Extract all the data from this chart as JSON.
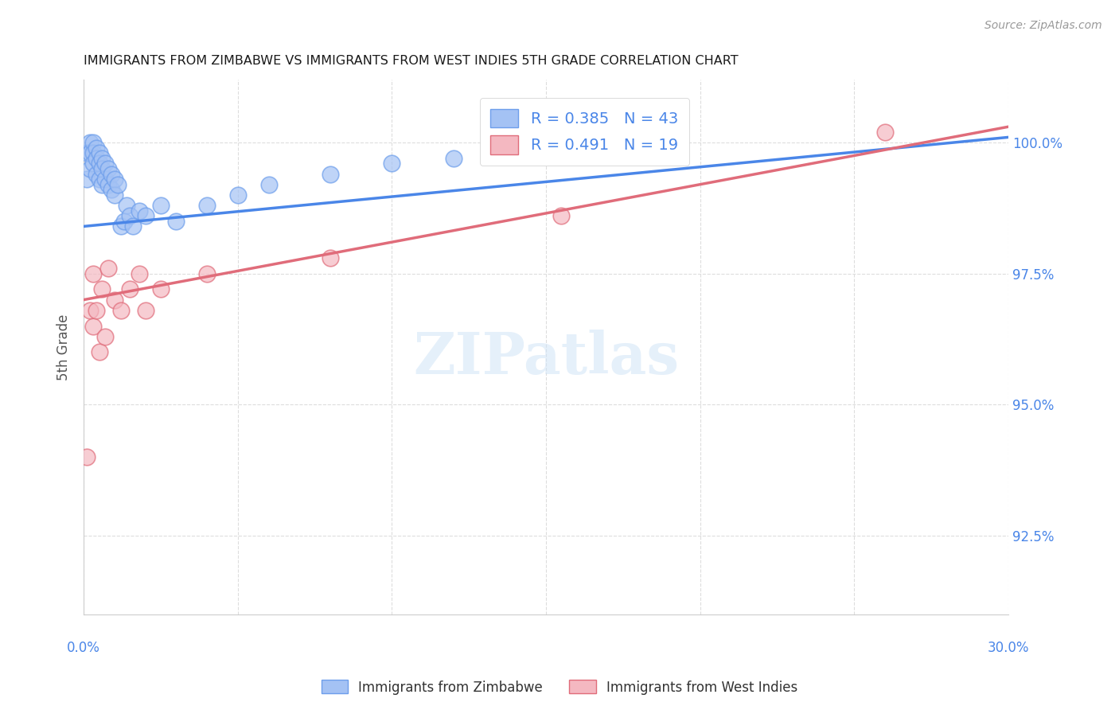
{
  "title": "IMMIGRANTS FROM ZIMBABWE VS IMMIGRANTS FROM WEST INDIES 5TH GRADE CORRELATION CHART",
  "source": "Source: ZipAtlas.com",
  "ylabel": "5th Grade",
  "ytick_values": [
    1.0,
    0.975,
    0.95,
    0.925
  ],
  "ytick_labels": [
    "100.0%",
    "97.5%",
    "95.0%",
    "92.5%"
  ],
  "xlim": [
    0.0,
    0.3
  ],
  "ylim": [
    0.91,
    1.012
  ],
  "legend_r1": "R = 0.385",
  "legend_n1": "N = 43",
  "legend_r2": "R = 0.491",
  "legend_n2": "N = 19",
  "blue_fill": "#a4c2f4",
  "blue_edge": "#6d9eeb",
  "pink_fill": "#f4b8c1",
  "pink_edge": "#e06c7a",
  "blue_line": "#4a86e8",
  "pink_line": "#e06c7a",
  "title_color": "#1a1a1a",
  "source_color": "#999999",
  "axis_label_color": "#555555",
  "ytick_color": "#4a86e8",
  "xtick_color": "#4a86e8",
  "grid_color": "#dddddd",
  "background_color": "#ffffff",
  "legend_label_color": "#4a86e8",
  "bottom_label_color": "#333333",
  "zimbabwe_x": [
    0.001,
    0.001,
    0.002,
    0.002,
    0.002,
    0.003,
    0.003,
    0.003,
    0.004,
    0.004,
    0.004,
    0.005,
    0.005,
    0.005,
    0.006,
    0.006,
    0.006,
    0.007,
    0.007,
    0.008,
    0.008,
    0.009,
    0.009,
    0.01,
    0.01,
    0.011,
    0.012,
    0.013,
    0.014,
    0.015,
    0.016,
    0.018,
    0.02,
    0.025,
    0.03,
    0.04,
    0.05,
    0.06,
    0.08,
    0.1,
    0.12,
    0.15,
    0.18
  ],
  "zimbabwe_y": [
    0.998,
    0.993,
    1.0,
    0.998,
    0.995,
    1.0,
    0.998,
    0.996,
    0.999,
    0.997,
    0.994,
    0.998,
    0.996,
    0.993,
    0.997,
    0.995,
    0.992,
    0.996,
    0.993,
    0.995,
    0.992,
    0.994,
    0.991,
    0.993,
    0.99,
    0.992,
    0.984,
    0.985,
    0.988,
    0.986,
    0.984,
    0.987,
    0.986,
    0.988,
    0.985,
    0.988,
    0.99,
    0.992,
    0.994,
    0.996,
    0.997,
    0.999,
    1.001
  ],
  "westindies_x": [
    0.001,
    0.002,
    0.003,
    0.003,
    0.004,
    0.005,
    0.006,
    0.007,
    0.008,
    0.01,
    0.012,
    0.015,
    0.018,
    0.02,
    0.025,
    0.04,
    0.08,
    0.155,
    0.26
  ],
  "westindies_y": [
    0.94,
    0.968,
    0.975,
    0.965,
    0.968,
    0.96,
    0.972,
    0.963,
    0.976,
    0.97,
    0.968,
    0.972,
    0.975,
    0.968,
    0.972,
    0.975,
    0.978,
    0.986,
    1.002
  ],
  "zim_line_x0": 0.0,
  "zim_line_x1": 0.3,
  "zim_line_y0": 0.984,
  "zim_line_y1": 1.001,
  "wi_line_x0": 0.0,
  "wi_line_x1": 0.3,
  "wi_line_y0": 0.97,
  "wi_line_y1": 1.003
}
